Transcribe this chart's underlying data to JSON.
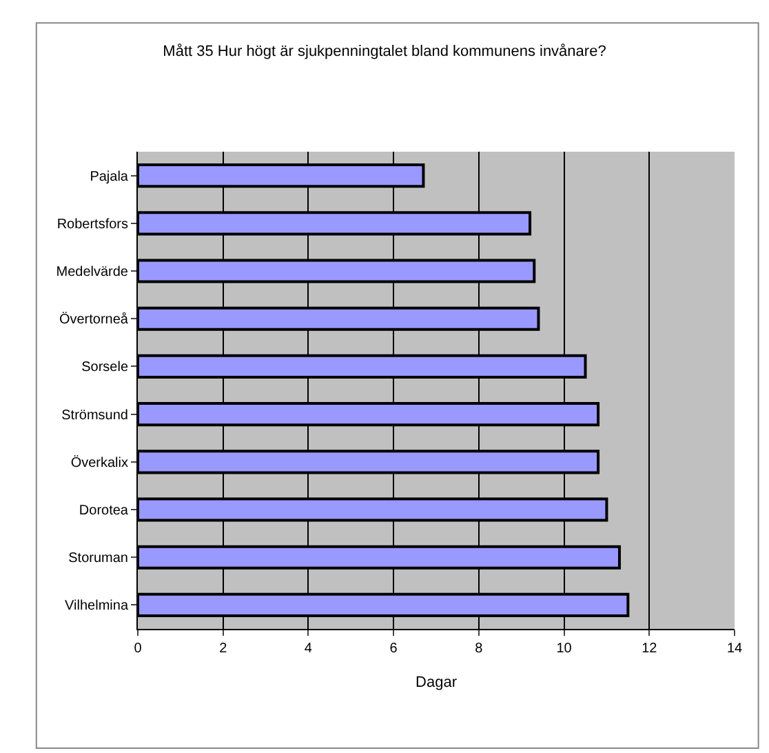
{
  "chart_data": {
    "type": "bar",
    "orientation": "horizontal",
    "title": "Mått 35 Hur högt är sjukpenningtalet bland kommunens invånare?",
    "xlabel": "Dagar",
    "categories": [
      "Pajala",
      "Robertsfors",
      "Medelvärde",
      "Övertorneå",
      "Sorsele",
      "Strömsund",
      "Överkalix",
      "Dorotea",
      "Storuman",
      "Vilhelmina"
    ],
    "values": [
      6.7,
      9.2,
      9.3,
      9.4,
      10.5,
      10.8,
      10.8,
      11.0,
      11.3,
      11.5
    ],
    "color": "#9999ff",
    "xlim": [
      0,
      14
    ],
    "xticks": [
      0,
      2,
      4,
      6,
      8,
      10,
      12,
      14
    ],
    "grid": "x",
    "legend": false
  }
}
